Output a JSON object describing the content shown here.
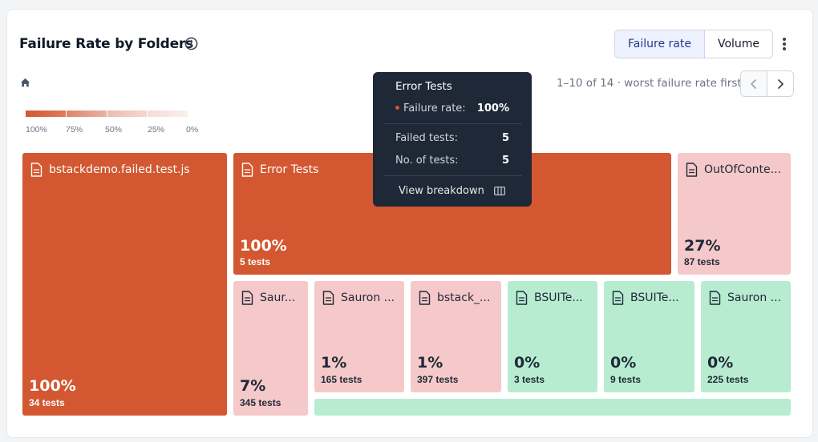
{
  "header": {
    "title": "Failure Rate by Folders",
    "info_icon": "info-circle-icon",
    "menu_icon": "kebab-menu-icon"
  },
  "toggle": {
    "options": [
      {
        "label": "Failure rate",
        "active": true
      },
      {
        "label": "Volume",
        "active": false
      }
    ]
  },
  "breadcrumb": {
    "home_icon": "home-icon"
  },
  "pagination": {
    "text": "1–10 of 14 · worst failure rate first",
    "prev_icon": "chevron-left-icon",
    "next_icon": "chevron-right-icon"
  },
  "legend": {
    "labels": [
      "100%",
      "75%",
      "50%",
      "25%",
      "0%"
    ],
    "colors": [
      "#d35730",
      "#e49580",
      "#f0c3b8",
      "#f8e1dc"
    ]
  },
  "colors": {
    "high": "#d35730",
    "low": "#f5c9c9",
    "zero": "#b7ecd1",
    "tooltip_bg": "#1e2837"
  },
  "tiles": [
    {
      "name": "bstackdemo.failed.test.js",
      "rate": "100%",
      "tests": "34 tests",
      "level": "dark"
    },
    {
      "name": "Error Tests",
      "rate": "100%",
      "tests": "5 tests",
      "level": "dark"
    },
    {
      "name": "OutOfConte...",
      "rate": "27%",
      "tests": "87 tests",
      "level": "pink"
    },
    {
      "name": "Saur...",
      "rate": "7%",
      "tests": "345 tests",
      "level": "pink"
    },
    {
      "name": "Sauron ...",
      "rate": "1%",
      "tests": "165 tests",
      "level": "pink"
    },
    {
      "name": "bstack_...",
      "rate": "1%",
      "tests": "397 tests",
      "level": "pink"
    },
    {
      "name": "BSUITe...",
      "rate": "0%",
      "tests": "3 tests",
      "level": "green"
    },
    {
      "name": "BSUITe...",
      "rate": "0%",
      "tests": "9 tests",
      "level": "green"
    },
    {
      "name": "Sauron ...",
      "rate": "0%",
      "tests": "225 tests",
      "level": "green"
    },
    {
      "name": "",
      "rate": "",
      "tests": "",
      "level": "green"
    }
  ],
  "tooltip": {
    "title": "Error Tests",
    "failure_rate_label": "Failure rate:",
    "failure_rate_value": "100%",
    "failed_label": "Failed tests:",
    "failed_value": "5",
    "count_label": "No. of tests:",
    "count_value": "5",
    "breakdown_label": "View breakdown",
    "breakdown_icon": "columns-icon"
  }
}
